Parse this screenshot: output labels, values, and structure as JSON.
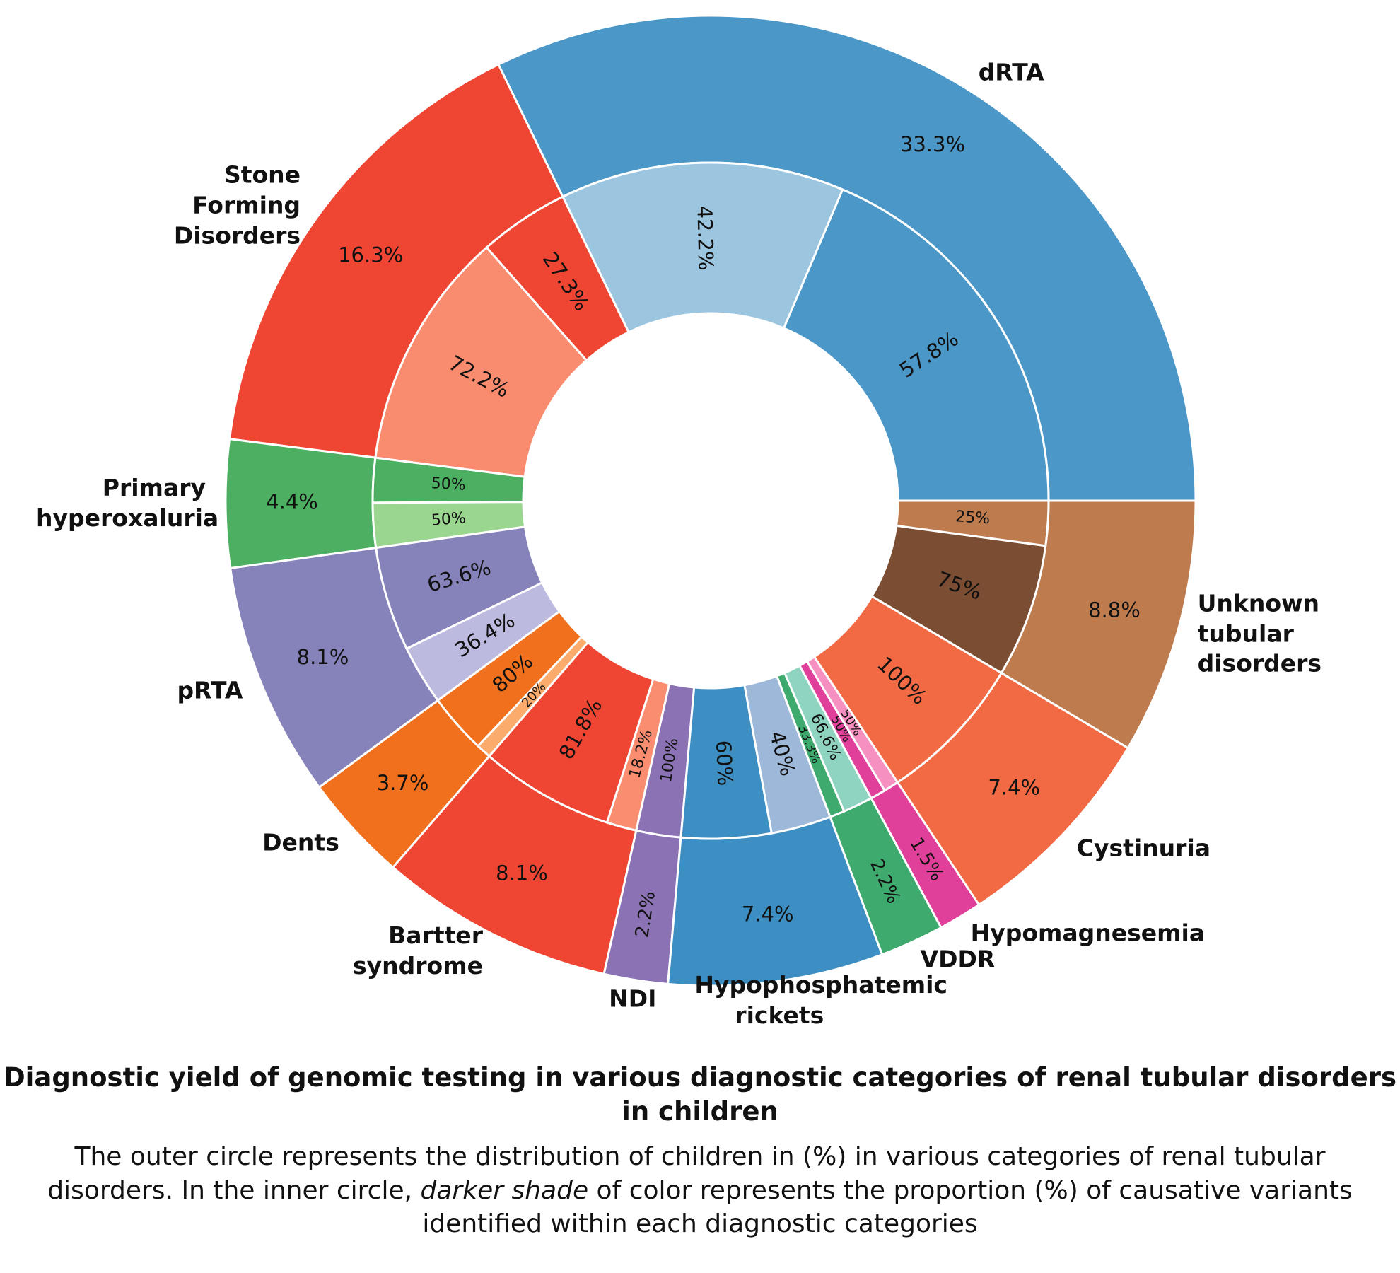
{
  "chart_data": {
    "type": "sunburst",
    "title": "Diagnostic yield of genomic testing in various diagnostic  categories of renal tubular disorders in children",
    "caption": [
      "The outer circle represents the distribution of children in (%) in  various categories of renal tubular disorders. In the inner circle, ",
      "darker shade",
      " of color represents the proportion (%) of causative variants identified within each diagnostic categories"
    ],
    "categories": [
      "dRTA",
      "Stone Forming Disorders",
      "Primary hyperoxaluria",
      "pRTA",
      "Dents",
      "Bartter syndrome",
      "NDI",
      "Hypophosphatemic rickets",
      "VDDR",
      "Hypomagnesemia",
      "Cystinuria",
      "Unknown tubular disorders"
    ],
    "values": [
      33.3,
      16.3,
      4.4,
      8.1,
      3.7,
      8.1,
      2.2,
      7.4,
      2.2,
      1.5,
      7.4,
      8.8
    ],
    "value_labels": [
      "33.3%",
      "16.3%",
      "4.4%",
      "8.1%",
      "3.7%",
      "8.1%",
      "2.2%",
      "7.4%",
      "2.2%",
      "1.5%",
      "7.4%",
      "8.8%"
    ],
    "colors": [
      "#4a97c8",
      "#ef4533",
      "#4caf61",
      "#8683bb",
      "#f0701e",
      "#ef4533",
      "#8a72b4",
      "#3d8ec2",
      "#3eaa6e",
      "#e0409a",
      "#f26a44",
      "#bd7b4e"
    ],
    "inner": [
      {
        "values": [
          57.8,
          42.2
        ],
        "value_labels": [
          "57.8%",
          "42.2%"
        ],
        "colors": [
          "#4a97c8",
          "#9cc5e0"
        ]
      },
      {
        "values": [
          27.3,
          72.2
        ],
        "value_labels": [
          "27.3%",
          "72.2%"
        ],
        "colors": [
          "#ef4533",
          "#f98b6e"
        ]
      },
      {
        "values": [
          50,
          50
        ],
        "value_labels": [
          "50%",
          "50%"
        ],
        "colors": [
          "#4caf61",
          "#9bd690"
        ]
      },
      {
        "values": [
          63.6,
          36.4
        ],
        "value_labels": [
          "63.6%",
          "36.4%"
        ],
        "colors": [
          "#8683bb",
          "#bcbade"
        ]
      },
      {
        "values": [
          80,
          20
        ],
        "value_labels": [
          "80%",
          "20%"
        ],
        "colors": [
          "#f0701e",
          "#fbab6b"
        ]
      },
      {
        "values": [
          81.8,
          18.2
        ],
        "value_labels": [
          "81.8%",
          "18.2%"
        ],
        "colors": [
          "#ef4533",
          "#fa8c70"
        ]
      },
      {
        "values": [
          100
        ],
        "value_labels": [
          "100%"
        ],
        "colors": [
          "#8a72b4"
        ]
      },
      {
        "values": [
          60,
          40
        ],
        "value_labels": [
          "60%",
          "40%"
        ],
        "colors": [
          "#3d8ec2",
          "#9db8d8"
        ]
      },
      {
        "values": [
          33.3,
          66.6
        ],
        "value_labels": [
          "33.3%",
          "66.6%"
        ],
        "colors": [
          "#3eaa6e",
          "#8fd4c0"
        ]
      },
      {
        "values": [
          50,
          50
        ],
        "value_labels": [
          "50%",
          "50%"
        ],
        "colors": [
          "#e0409a",
          "#f590c0"
        ]
      },
      {
        "values": [
          100
        ],
        "value_labels": [
          "100%"
        ],
        "colors": [
          "#f26a44"
        ]
      },
      {
        "values": [
          75,
          25
        ],
        "value_labels": [
          "75%",
          "25%"
        ],
        "colors": [
          "#7b4e33",
          "#bd7b4e"
        ]
      }
    ]
  }
}
